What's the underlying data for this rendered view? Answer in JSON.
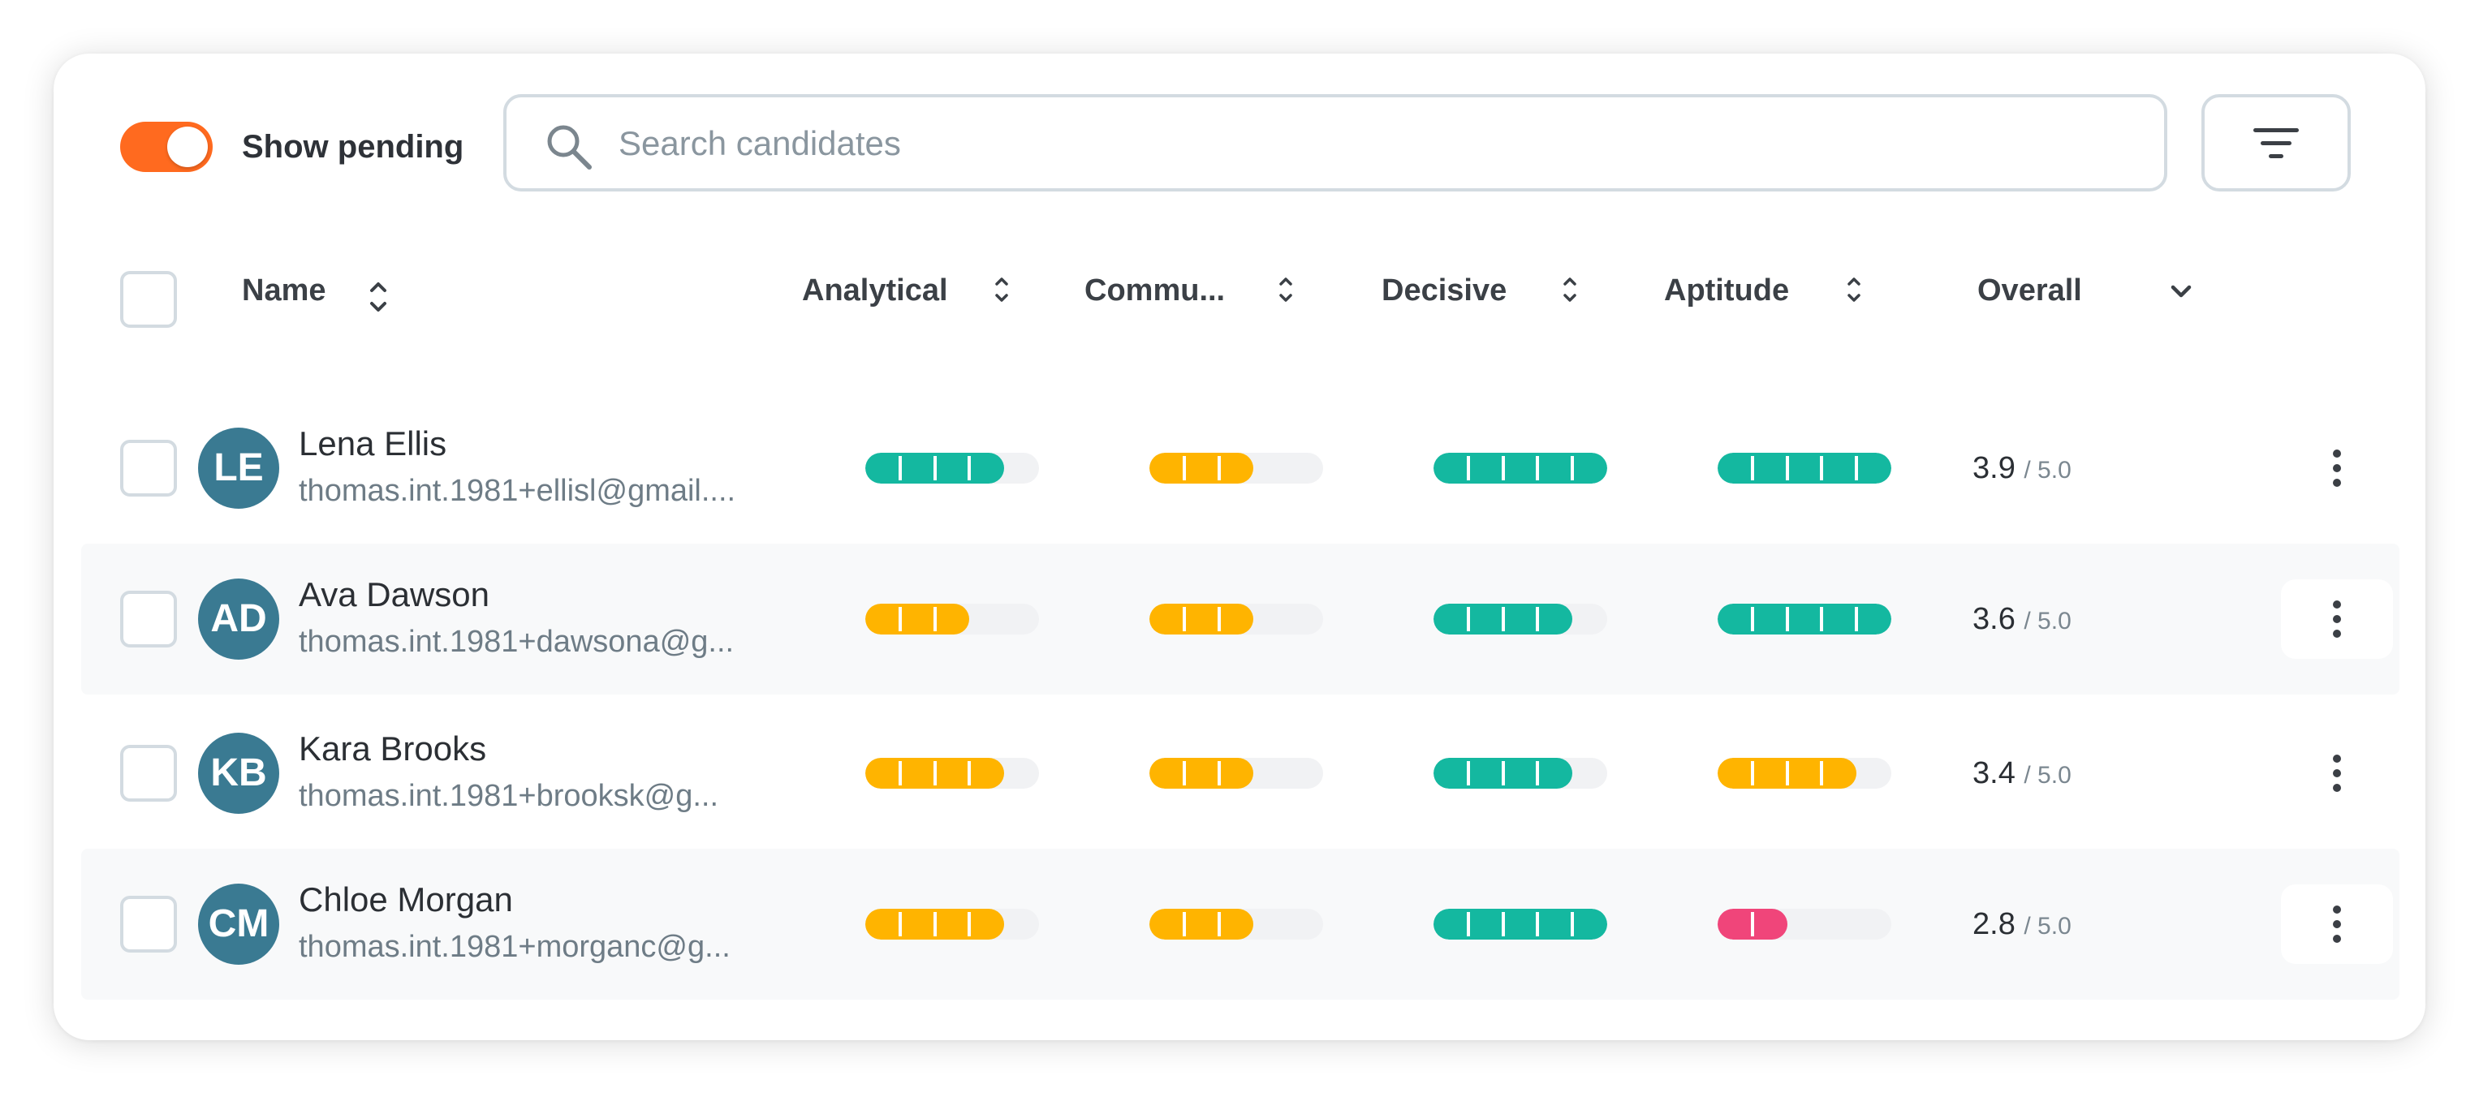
{
  "toolbar": {
    "toggle_label": "Show pending",
    "toggle_on": true,
    "search_placeholder": "Search candidates"
  },
  "columns": [
    {
      "label": "Name"
    },
    {
      "label": "Analytical"
    },
    {
      "label": "Commu..."
    },
    {
      "label": "Decisive"
    },
    {
      "label": "Aptitude"
    },
    {
      "label": "Overall"
    }
  ],
  "colors": {
    "high": "#14b8a0",
    "mid": "#ffb400",
    "low": "#f0457a",
    "accent": "#ff6a1f",
    "avatar": "#3a7a92"
  },
  "candidates": [
    {
      "initials": "LE",
      "name": "Lena Ellis",
      "email": "thomas.int.1981+ellisl@gmail....",
      "scores": [
        4,
        3,
        5,
        5
      ],
      "levels": [
        "high",
        "mid",
        "high",
        "high"
      ],
      "overall": "3.9",
      "overall_max": "/ 5.0"
    },
    {
      "initials": "AD",
      "name": "Ava Dawson",
      "email": "thomas.int.1981+dawsona@g...",
      "scores": [
        3,
        3,
        4,
        5
      ],
      "levels": [
        "mid",
        "mid",
        "high",
        "high"
      ],
      "overall": "3.6",
      "overall_max": "/ 5.0"
    },
    {
      "initials": "KB",
      "name": "Kara Brooks",
      "email": "thomas.int.1981+brooksk@g...",
      "scores": [
        4,
        3,
        4,
        4
      ],
      "levels": [
        "mid",
        "mid",
        "high",
        "mid"
      ],
      "overall": "3.4",
      "overall_max": "/ 5.0"
    },
    {
      "initials": "CM",
      "name": "Chloe Morgan",
      "email": "thomas.int.1981+morganc@g...",
      "scores": [
        4,
        3,
        5,
        2
      ],
      "levels": [
        "mid",
        "mid",
        "high",
        "low"
      ],
      "overall": "2.8",
      "overall_max": "/ 5.0"
    }
  ]
}
